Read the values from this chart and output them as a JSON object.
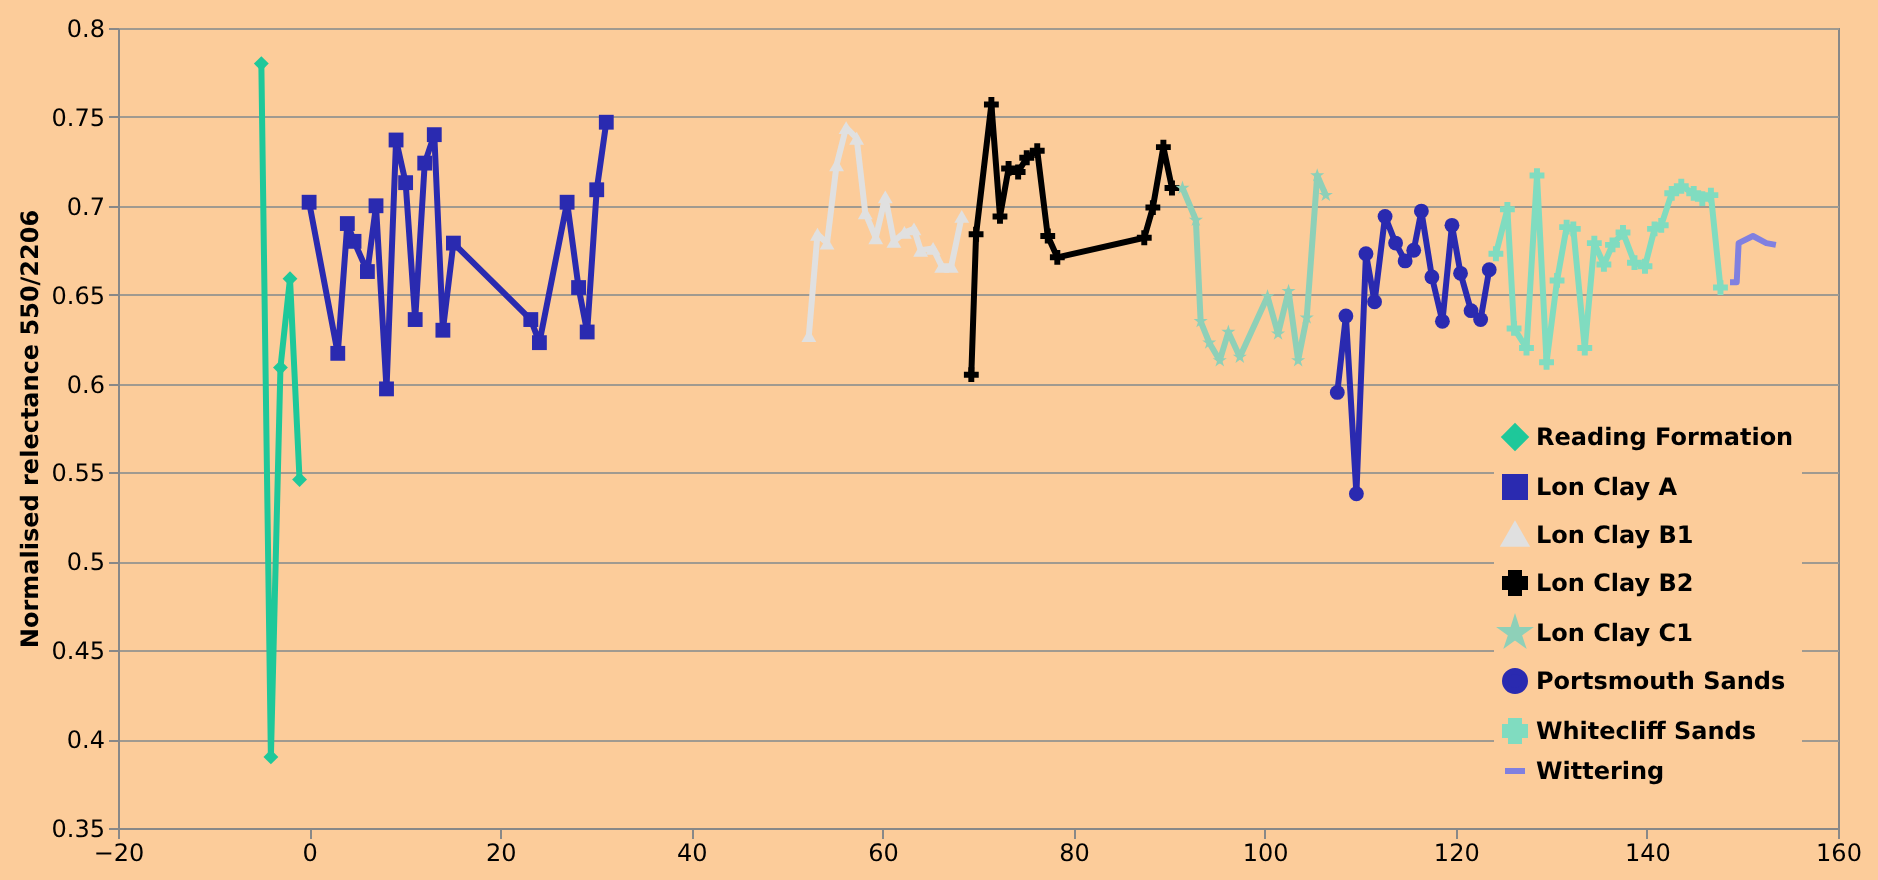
{
  "chart_data": {
    "type": "line",
    "ylabel": "Normalised relectance 550/2206",
    "xlim": [
      -20,
      160
    ],
    "xticks": [
      -20,
      0,
      20,
      40,
      60,
      80,
      100,
      120,
      140,
      160
    ],
    "ylim": [
      0.35,
      0.8
    ],
    "yticks": [
      0.35,
      0.4,
      0.45,
      0.5,
      0.55,
      0.6,
      0.65,
      0.7,
      0.75,
      0.8
    ],
    "grid": "y",
    "legend": "bottom right",
    "series": [
      {
        "name": "Reading Formation",
        "color": "#1ec89a",
        "marker": "diamond",
        "x": [
          -5,
          -4,
          -3,
          -2,
          -1
        ],
        "values": [
          0.78,
          0.39,
          0.609,
          0.659,
          0.546
        ]
      },
      {
        "name": "Lon Clay A",
        "color": "#2a2ab0",
        "marker": "square",
        "x": [
          0,
          3,
          4,
          4.7,
          6.1,
          7,
          8.1,
          9.1,
          10.1,
          11.1,
          12.1,
          13.1,
          14,
          15.1,
          23.2,
          24.1,
          27,
          28.2,
          29.1,
          30.1,
          31.1
        ],
        "values": [
          0.702,
          0.617,
          0.69,
          0.68,
          0.663,
          0.7,
          0.597,
          0.737,
          0.713,
          0.636,
          0.724,
          0.74,
          0.63,
          0.679,
          0.636,
          0.623,
          0.702,
          0.654,
          0.629,
          0.709,
          0.747
        ]
      },
      {
        "name": "Lon Clay B1",
        "color": "#e0e0e0",
        "marker": "triangle",
        "x": [
          52.3,
          53.2,
          54.2,
          55.2,
          56.2,
          57.3,
          58.2,
          59.3,
          60.3,
          61.2,
          62.3,
          63.3,
          64,
          65.3,
          66.2,
          67.2,
          68.3
        ],
        "values": [
          0.627,
          0.684,
          0.679,
          0.723,
          0.744,
          0.738,
          0.696,
          0.682,
          0.705,
          0.68,
          0.685,
          0.687,
          0.675,
          0.676,
          0.666,
          0.666,
          0.694
        ]
      },
      {
        "name": "Lon Clay B2",
        "color": "#000000",
        "marker": "cross",
        "x": [
          69.3,
          69.8,
          71.4,
          72.3,
          73.2,
          74.2,
          75.1,
          76.2,
          77.3,
          78.3,
          87.4,
          88.3,
          89.4,
          90.3
        ],
        "values": [
          0.605,
          0.684,
          0.757,
          0.694,
          0.721,
          0.719,
          0.727,
          0.731,
          0.683,
          0.671,
          0.682,
          0.699,
          0.733,
          0.71
        ]
      },
      {
        "name": "Lon Clay C1",
        "color": "#8ed0b8",
        "marker": "star",
        "x": [
          91.4,
          92.8,
          93.3,
          94.2,
          95.3,
          96.2,
          97.4,
          100.3,
          101.4,
          102.5,
          103.5,
          104.4,
          105.5,
          106.4
        ],
        "values": [
          0.71,
          0.692,
          0.635,
          0.623,
          0.613,
          0.629,
          0.615,
          0.649,
          0.628,
          0.652,
          0.613,
          0.637,
          0.717,
          0.706
        ]
      },
      {
        "name": "Portsmouth Sands",
        "color": "#2a2ab0",
        "marker": "circle",
        "x": [
          107.6,
          108.5,
          109.6,
          110.6,
          111.5,
          112.6,
          113.7,
          114.7,
          115.6,
          116.4,
          117.5,
          118.6,
          119.6,
          120.5,
          121.6,
          122.6,
          123.5
        ],
        "values": [
          0.595,
          0.638,
          0.538,
          0.673,
          0.646,
          0.694,
          0.679,
          0.669,
          0.675,
          0.697,
          0.66,
          0.635,
          0.689,
          0.662,
          0.641,
          0.636,
          0.664
        ]
      },
      {
        "name": "Whitecliff Sands",
        "color": "#80dcc0",
        "marker": "cross",
        "x": [
          124.2,
          125.4,
          126.1,
          127.4,
          128.5,
          129.5,
          130.6,
          131.6,
          132.3,
          133.5,
          134.5,
          135.5,
          136.4,
          137.5,
          138.7,
          139.8,
          140.8,
          141.5,
          142.6,
          143.6,
          144.9,
          145.8,
          146.7,
          147.7
        ],
        "values": [
          0.673,
          0.698,
          0.631,
          0.62,
          0.717,
          0.612,
          0.658,
          0.688,
          0.687,
          0.62,
          0.679,
          0.667,
          0.678,
          0.685,
          0.668,
          0.666,
          0.687,
          0.689,
          0.707,
          0.711,
          0.707,
          0.704,
          0.706,
          0.654
        ]
      },
      {
        "name": "Wittering",
        "color": "#8080e0",
        "marker": "none",
        "x": [
          148.7,
          149.4,
          149.6,
          151.1,
          152.5,
          153.5
        ],
        "values": [
          0.657,
          0.657,
          0.679,
          0.683,
          0.679,
          0.678
        ]
      }
    ]
  }
}
